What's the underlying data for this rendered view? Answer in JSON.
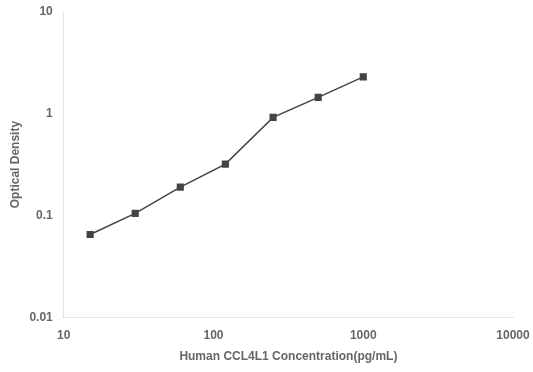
{
  "chart_data": {
    "type": "line",
    "x": [
      15,
      30,
      60,
      120,
      250,
      500,
      1000
    ],
    "values": [
      0.065,
      0.105,
      0.19,
      0.32,
      0.92,
      1.45,
      2.3
    ],
    "xlabel": "Human CCL4L1 Concentration(pg/mL)",
    "ylabel": "Optical Density",
    "xlim": [
      10,
      10000
    ],
    "ylim": [
      0.01,
      10
    ],
    "xticks": [
      10,
      100,
      1000,
      10000
    ],
    "yticks": [
      0.01,
      0.1,
      1,
      10
    ],
    "log": true,
    "grid": false,
    "color": "#444444",
    "marker": "square"
  }
}
